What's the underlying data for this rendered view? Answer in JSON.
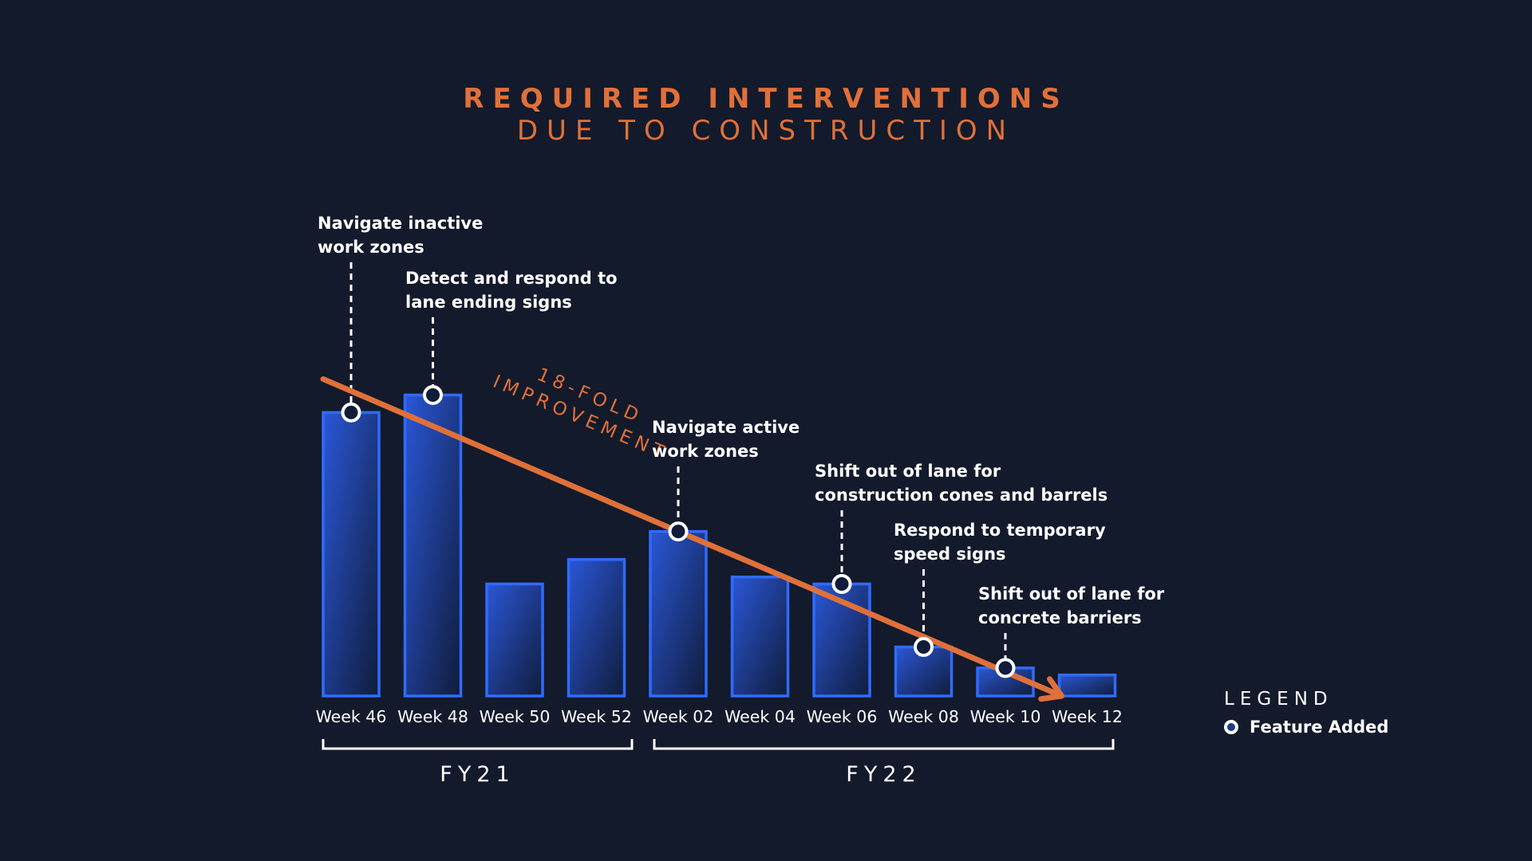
{
  "colors": {
    "background": "#131a2b",
    "accent": "#e0703a",
    "bar_fill_top": "#2a57d8",
    "bar_fill_bottom": "#101c3a",
    "bar_stroke": "#2f6bff",
    "marker_stroke": "#ffffff"
  },
  "chart_data": {
    "type": "bar",
    "title": "REQUIRED INTERVENTIONS",
    "subtitle": "DUE TO CONSTRUCTION",
    "xlabel": "",
    "ylabel": "",
    "ylim": [
      0,
      100
    ],
    "grid": false,
    "categories": [
      "Week 46",
      "Week 48",
      "Week 50",
      "Week 52",
      "Week 02",
      "Week 04",
      "Week 06",
      "Week 08",
      "Week 10",
      "Week 12"
    ],
    "values": [
      81,
      86,
      32,
      39,
      47,
      34,
      32,
      14,
      8,
      6
    ],
    "groups": [
      {
        "label": "FY21",
        "from": 0,
        "to": 3
      },
      {
        "label": "FY22",
        "from": 4,
        "to": 9
      }
    ],
    "feature_markers": [
      {
        "index": 0,
        "lines": [
          "Navigate inactive",
          "work zones"
        ]
      },
      {
        "index": 1,
        "lines": [
          "Detect and respond to",
          "lane ending signs"
        ]
      },
      {
        "index": 4,
        "lines": [
          "Navigate active",
          "work zones"
        ]
      },
      {
        "index": 6,
        "lines": [
          "Shift out of lane for",
          "construction cones and barrels"
        ]
      },
      {
        "index": 7,
        "lines": [
          "Respond to temporary",
          "speed signs"
        ]
      },
      {
        "index": 8,
        "lines": [
          "Shift out of lane for",
          "concrete barriers"
        ]
      }
    ],
    "trend_line": {
      "from": {
        "index": 0,
        "value": 86
      },
      "to": {
        "index": 9,
        "value": 0
      },
      "label_lines": [
        "18-FOLD",
        "IMPROVEMENT"
      ]
    },
    "legend": {
      "title": "LEGEND",
      "items": [
        {
          "marker": "open-circle",
          "label": "Feature Added"
        }
      ],
      "placement": "right"
    }
  }
}
